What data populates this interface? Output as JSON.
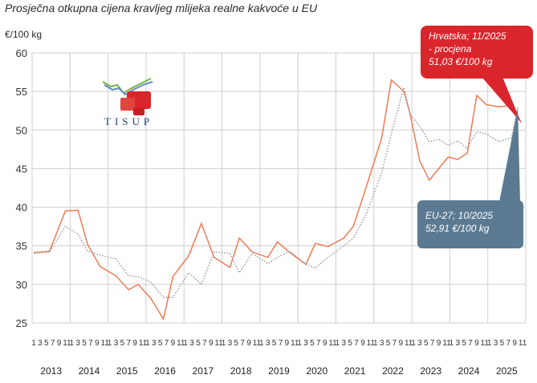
{
  "title": "Prosječna otkupna cijena kravljeg mlijeka realne kakvoće u EU",
  "unit": "€/100 kg",
  "logo_text": "TISUP",
  "callout_hr": {
    "line1": "Hrvatska; 11/2025",
    "line2": " - procjena",
    "line3": "51,03 €/100 kg"
  },
  "callout_eu": {
    "line1": "EU-27; 10/2025",
    "line2": "52,91 €/100 kg"
  },
  "colors": {
    "hr": "#f07a55",
    "eu": "#9aa0a6",
    "grid": "#cfcfcf",
    "callout_red": "#d9262c",
    "callout_blue": "#5b7a92"
  },
  "chart_data": {
    "type": "line",
    "ylim": [
      25,
      60
    ],
    "yticks": [
      "25",
      "30",
      "35",
      "40",
      "45",
      "50",
      "55",
      "60"
    ],
    "x_tick_labels": [
      "1",
      "3",
      "5",
      "7",
      "9",
      "11"
    ],
    "years": [
      "2013",
      "2014",
      "2015",
      "2016",
      "2017",
      "2018",
      "2019",
      "2020",
      "2021",
      "2022",
      "2023",
      "2024",
      "2025"
    ],
    "series": [
      {
        "style": "solid",
        "color": "#f07a55",
        "x": [
          "2013-01",
          "2013-06",
          "2013-11",
          "2014-03",
          "2014-06",
          "2014-10",
          "2015-03",
          "2015-07",
          "2015-10",
          "2016-02",
          "2016-06",
          "2016-09",
          "2017-02",
          "2017-06",
          "2017-10",
          "2018-03",
          "2018-06",
          "2018-10",
          "2019-03",
          "2019-06",
          "2019-10",
          "2020-03",
          "2020-06",
          "2020-10",
          "2021-03",
          "2021-06",
          "2021-10",
          "2022-03",
          "2022-06",
          "2022-10",
          "2022-12",
          "2023-03",
          "2023-06",
          "2023-09",
          "2023-12",
          "2024-03",
          "2024-06",
          "2024-09",
          "2024-12",
          "2025-04",
          "2025-08",
          "2025-11"
        ],
        "y": [
          34.1,
          34.3,
          39.5,
          39.6,
          35.2,
          32.3,
          31.1,
          29.3,
          30.0,
          28.2,
          25.5,
          31.0,
          33.7,
          37.9,
          33.5,
          32.2,
          36.0,
          34.2,
          33.5,
          35.5,
          34.1,
          32.6,
          35.3,
          34.9,
          36.0,
          37.5,
          42.5,
          49.0,
          56.5,
          55.0,
          52.0,
          46.0,
          43.5,
          45.0,
          46.5,
          46.2,
          47.0,
          54.5,
          53.3,
          53.0,
          53.2,
          51.0
        ]
      },
      {
        "style": "dotted",
        "color": "#9aa0a6",
        "x": [
          "2013-01",
          "2013-06",
          "2013-11",
          "2014-03",
          "2014-06",
          "2014-10",
          "2015-03",
          "2015-07",
          "2015-10",
          "2016-02",
          "2016-06",
          "2016-09",
          "2017-02",
          "2017-06",
          "2017-10",
          "2018-03",
          "2018-06",
          "2018-10",
          "2019-03",
          "2019-06",
          "2019-10",
          "2020-03",
          "2020-06",
          "2020-10",
          "2021-03",
          "2021-06",
          "2021-10",
          "2022-03",
          "2022-06",
          "2022-10",
          "2022-12",
          "2023-03",
          "2023-06",
          "2023-09",
          "2023-12",
          "2024-03",
          "2024-06",
          "2024-09",
          "2024-12",
          "2025-04",
          "2025-08",
          "2025-10"
        ],
        "y": [
          34.0,
          34.2,
          37.5,
          36.5,
          34.3,
          33.8,
          33.3,
          31.1,
          31.0,
          30.3,
          28.3,
          28.3,
          31.5,
          30.0,
          34.2,
          34.0,
          31.5,
          34.0,
          32.7,
          33.5,
          34.3,
          32.6,
          32.1,
          33.5,
          35.0,
          36.0,
          39.0,
          44.5,
          49.5,
          55.5,
          52.0,
          50.5,
          48.5,
          48.8,
          48.0,
          48.6,
          47.6,
          49.8,
          49.5,
          48.5,
          49.0,
          52.9
        ]
      }
    ]
  }
}
